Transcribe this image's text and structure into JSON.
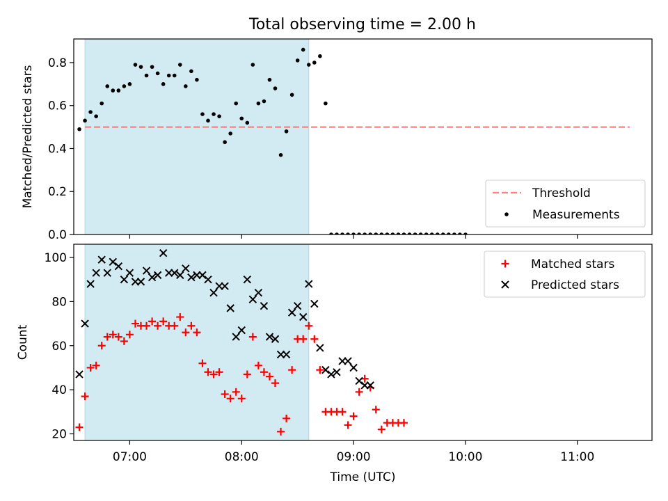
{
  "figure": {
    "title": "Total observing time = 2.00 h"
  },
  "colors": {
    "shade": "#add8e6",
    "threshold": "#ff7f7f",
    "measurements": "#000000",
    "matched": "#ff0000",
    "predicted": "#000000"
  },
  "chart_data": [
    {
      "type": "scatter",
      "panel": "top",
      "title": "Total observing time = 2.00 h",
      "xlabel": "",
      "ylabel": "Matched/Predicted stars",
      "x_unit": "hours UTC",
      "xlim": [
        "06:30",
        "11:40"
      ],
      "ylim": [
        0,
        0.91
      ],
      "yticks": [
        0.0,
        0.2,
        0.4,
        0.6,
        0.8
      ],
      "ytick_labels": [
        "0.0",
        "0.2",
        "0.4",
        "0.6",
        "0.8"
      ],
      "xticks": [
        "07:00",
        "08:00",
        "09:00",
        "10:00",
        "11:00"
      ],
      "shaded_region": {
        "x_start": "06:36",
        "x_end": "08:36"
      },
      "legend": {
        "position": "lower right",
        "entries": [
          "Threshold",
          "Measurements"
        ]
      },
      "series": [
        {
          "name": "Threshold",
          "style": "dashed-line",
          "points": [
            [
              "06:36",
              0.5
            ],
            [
              "11:28",
              0.5
            ]
          ]
        },
        {
          "name": "Measurements",
          "style": "dot",
          "points": [
            [
              "06:33",
              0.49
            ],
            [
              "06:36",
              0.53
            ],
            [
              "06:39",
              0.57
            ],
            [
              "06:42",
              0.55
            ],
            [
              "06:45",
              0.61
            ],
            [
              "06:48",
              0.69
            ],
            [
              "06:51",
              0.67
            ],
            [
              "06:54",
              0.67
            ],
            [
              "06:57",
              0.69
            ],
            [
              "07:00",
              0.7
            ],
            [
              "07:03",
              0.79
            ],
            [
              "07:06",
              0.78
            ],
            [
              "07:09",
              0.74
            ],
            [
              "07:12",
              0.78
            ],
            [
              "07:15",
              0.75
            ],
            [
              "07:18",
              0.7
            ],
            [
              "07:21",
              0.74
            ],
            [
              "07:24",
              0.74
            ],
            [
              "07:27",
              0.79
            ],
            [
              "07:30",
              0.69
            ],
            [
              "07:33",
              0.76
            ],
            [
              "07:36",
              0.72
            ],
            [
              "07:39",
              0.56
            ],
            [
              "07:42",
              0.53
            ],
            [
              "07:45",
              0.56
            ],
            [
              "07:48",
              0.55
            ],
            [
              "07:51",
              0.43
            ],
            [
              "07:54",
              0.47
            ],
            [
              "07:57",
              0.61
            ],
            [
              "08:00",
              0.54
            ],
            [
              "08:03",
              0.52
            ],
            [
              "08:06",
              0.79
            ],
            [
              "08:09",
              0.61
            ],
            [
              "08:12",
              0.62
            ],
            [
              "08:15",
              0.72
            ],
            [
              "08:18",
              0.68
            ],
            [
              "08:21",
              0.37
            ],
            [
              "08:24",
              0.48
            ],
            [
              "08:27",
              0.65
            ],
            [
              "08:30",
              0.81
            ],
            [
              "08:33",
              0.86
            ],
            [
              "08:36",
              0.79
            ],
            [
              "08:39",
              0.8
            ],
            [
              "08:42",
              0.83
            ],
            [
              "08:45",
              0.61
            ],
            [
              "08:48",
              0.0
            ],
            [
              "08:51",
              0.0
            ],
            [
              "08:54",
              0.0
            ],
            [
              "08:57",
              0.0
            ],
            [
              "09:00",
              0.0
            ],
            [
              "09:03",
              0.0
            ],
            [
              "09:06",
              0.0
            ],
            [
              "09:09",
              0.0
            ],
            [
              "09:12",
              0.0
            ],
            [
              "09:15",
              0.0
            ],
            [
              "09:18",
              0.0
            ],
            [
              "09:21",
              0.0
            ],
            [
              "09:24",
              0.0
            ],
            [
              "09:27",
              0.0
            ],
            [
              "09:30",
              0.0
            ],
            [
              "09:33",
              0.0
            ],
            [
              "09:36",
              0.0
            ],
            [
              "09:39",
              0.0
            ],
            [
              "09:42",
              0.0
            ],
            [
              "09:45",
              0.0
            ],
            [
              "09:48",
              0.0
            ],
            [
              "09:51",
              0.0
            ],
            [
              "09:54",
              0.0
            ],
            [
              "09:57",
              0.0
            ],
            [
              "10:00",
              0.0
            ]
          ]
        }
      ]
    },
    {
      "type": "scatter",
      "panel": "bottom",
      "xlabel": "Time (UTC)",
      "ylabel": "Count",
      "x_unit": "hours UTC",
      "xlim": [
        "06:30",
        "11:40"
      ],
      "ylim": [
        17,
        106
      ],
      "yticks": [
        20,
        40,
        60,
        80,
        100
      ],
      "xticks": [
        "07:00",
        "08:00",
        "09:00",
        "10:00",
        "11:00"
      ],
      "shaded_region": {
        "x_start": "06:36",
        "x_end": "08:36"
      },
      "legend": {
        "position": "upper right",
        "entries": [
          "Matched stars",
          "Predicted stars"
        ]
      },
      "series": [
        {
          "name": "Matched stars",
          "marker": "+",
          "points": [
            [
              "06:33",
              23
            ],
            [
              "06:36",
              37
            ],
            [
              "06:39",
              50
            ],
            [
              "06:42",
              51
            ],
            [
              "06:45",
              60
            ],
            [
              "06:48",
              64
            ],
            [
              "06:51",
              65
            ],
            [
              "06:54",
              64
            ],
            [
              "06:57",
              62
            ],
            [
              "07:00",
              65
            ],
            [
              "07:03",
              70
            ],
            [
              "07:06",
              69
            ],
            [
              "07:09",
              69
            ],
            [
              "07:12",
              71
            ],
            [
              "07:15",
              69
            ],
            [
              "07:18",
              71
            ],
            [
              "07:21",
              69
            ],
            [
              "07:24",
              69
            ],
            [
              "07:27",
              73
            ],
            [
              "07:30",
              66
            ],
            [
              "07:33",
              69
            ],
            [
              "07:36",
              66
            ],
            [
              "07:39",
              52
            ],
            [
              "07:42",
              48
            ],
            [
              "07:45",
              47
            ],
            [
              "07:48",
              48
            ],
            [
              "07:51",
              38
            ],
            [
              "07:54",
              36
            ],
            [
              "07:57",
              39
            ],
            [
              "08:00",
              36
            ],
            [
              "08:03",
              47
            ],
            [
              "08:06",
              64
            ],
            [
              "08:09",
              51
            ],
            [
              "08:12",
              48
            ],
            [
              "08:15",
              46
            ],
            [
              "08:18",
              43
            ],
            [
              "08:21",
              21
            ],
            [
              "08:24",
              27
            ],
            [
              "08:27",
              49
            ],
            [
              "08:30",
              63
            ],
            [
              "08:33",
              63
            ],
            [
              "08:36",
              69
            ],
            [
              "08:39",
              63
            ],
            [
              "08:42",
              49
            ],
            [
              "08:45",
              30
            ],
            [
              "08:48",
              30
            ],
            [
              "08:51",
              30
            ],
            [
              "08:54",
              30
            ],
            [
              "08:57",
              24
            ],
            [
              "09:00",
              28
            ],
            [
              "09:03",
              39
            ],
            [
              "09:06",
              45
            ],
            [
              "09:09",
              41
            ],
            [
              "09:12",
              31
            ],
            [
              "09:15",
              22
            ],
            [
              "09:18",
              25
            ],
            [
              "09:21",
              25
            ],
            [
              "09:24",
              25
            ],
            [
              "09:27",
              25
            ]
          ]
        },
        {
          "name": "Predicted stars",
          "marker": "x",
          "points": [
            [
              "06:33",
              47
            ],
            [
              "06:36",
              70
            ],
            [
              "06:39",
              88
            ],
            [
              "06:42",
              93
            ],
            [
              "06:45",
              99
            ],
            [
              "06:48",
              93
            ],
            [
              "06:51",
              98
            ],
            [
              "06:54",
              96
            ],
            [
              "06:57",
              90
            ],
            [
              "07:00",
              93
            ],
            [
              "07:03",
              89
            ],
            [
              "07:06",
              89
            ],
            [
              "07:09",
              94
            ],
            [
              "07:12",
              91
            ],
            [
              "07:15",
              92
            ],
            [
              "07:18",
              102
            ],
            [
              "07:21",
              93
            ],
            [
              "07:24",
              93
            ],
            [
              "07:27",
              92
            ],
            [
              "07:30",
              95
            ],
            [
              "07:33",
              91
            ],
            [
              "07:36",
              92
            ],
            [
              "07:39",
              92
            ],
            [
              "07:42",
              90
            ],
            [
              "07:45",
              84
            ],
            [
              "07:48",
              87
            ],
            [
              "07:51",
              87
            ],
            [
              "07:54",
              77
            ],
            [
              "07:57",
              64
            ],
            [
              "08:00",
              67
            ],
            [
              "08:03",
              90
            ],
            [
              "08:06",
              81
            ],
            [
              "08:09",
              84
            ],
            [
              "08:12",
              78
            ],
            [
              "08:15",
              64
            ],
            [
              "08:18",
              63
            ],
            [
              "08:21",
              56
            ],
            [
              "08:24",
              56
            ],
            [
              "08:27",
              75
            ],
            [
              "08:30",
              78
            ],
            [
              "08:33",
              73
            ],
            [
              "08:36",
              88
            ],
            [
              "08:39",
              79
            ],
            [
              "08:42",
              59
            ],
            [
              "08:45",
              49
            ],
            [
              "08:48",
              47
            ],
            [
              "08:51",
              48
            ],
            [
              "08:54",
              53
            ],
            [
              "08:57",
              53
            ],
            [
              "09:00",
              50
            ],
            [
              "09:03",
              44
            ],
            [
              "09:06",
              42
            ],
            [
              "09:09",
              42
            ]
          ]
        }
      ]
    }
  ]
}
